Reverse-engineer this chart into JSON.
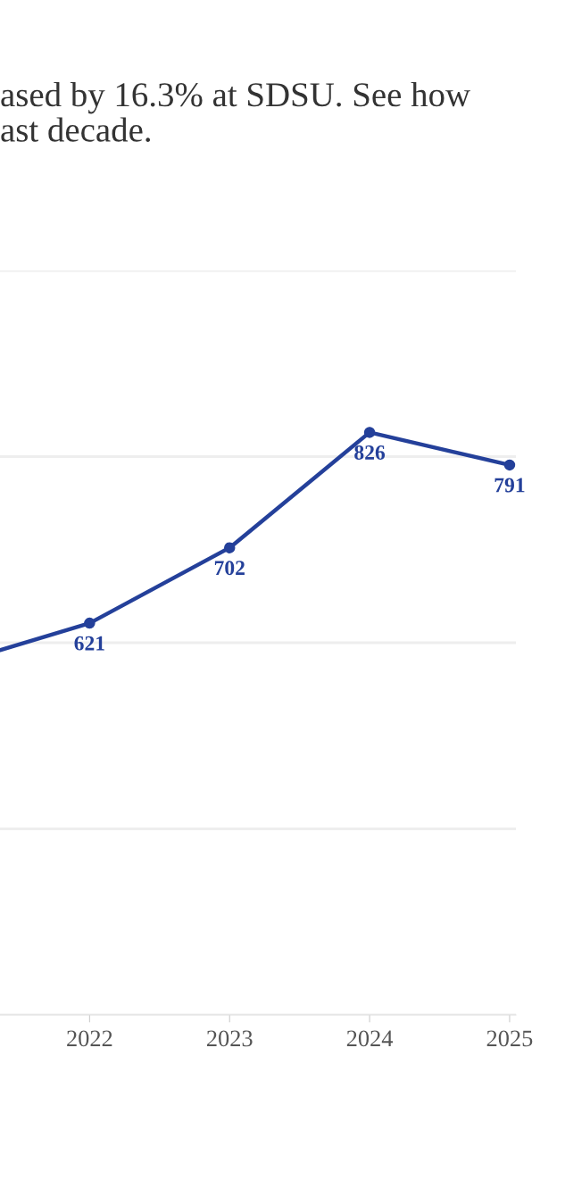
{
  "chart_data": {
    "type": "line",
    "subtitle": "ased by 16.3% at SDSU. See how\nast decade.",
    "x": [
      2021.36,
      2022,
      2023,
      2024,
      2025
    ],
    "series": [
      {
        "color": "#24409a",
        "values": [
          592,
          621,
          702,
          826,
          791
        ],
        "value_labels": [
          null,
          "621",
          "702",
          "826",
          "791"
        ]
      }
    ],
    "xlim": [
      2021.36,
      2025.045
    ],
    "xticks": [
      2022,
      2023,
      2024,
      2025
    ],
    "ylim": [
      200,
      1000
    ],
    "yticks": [
      {
        "value": 200,
        "label": null
      },
      {
        "value": 400,
        "label": null
      },
      {
        "value": 600,
        "label": null
      },
      {
        "value": 800,
        "label": null
      },
      {
        "value": 1000,
        "label": null
      }
    ],
    "grid": "y",
    "marker": "circle",
    "line_style": "solid",
    "tick_labels": "x"
  }
}
